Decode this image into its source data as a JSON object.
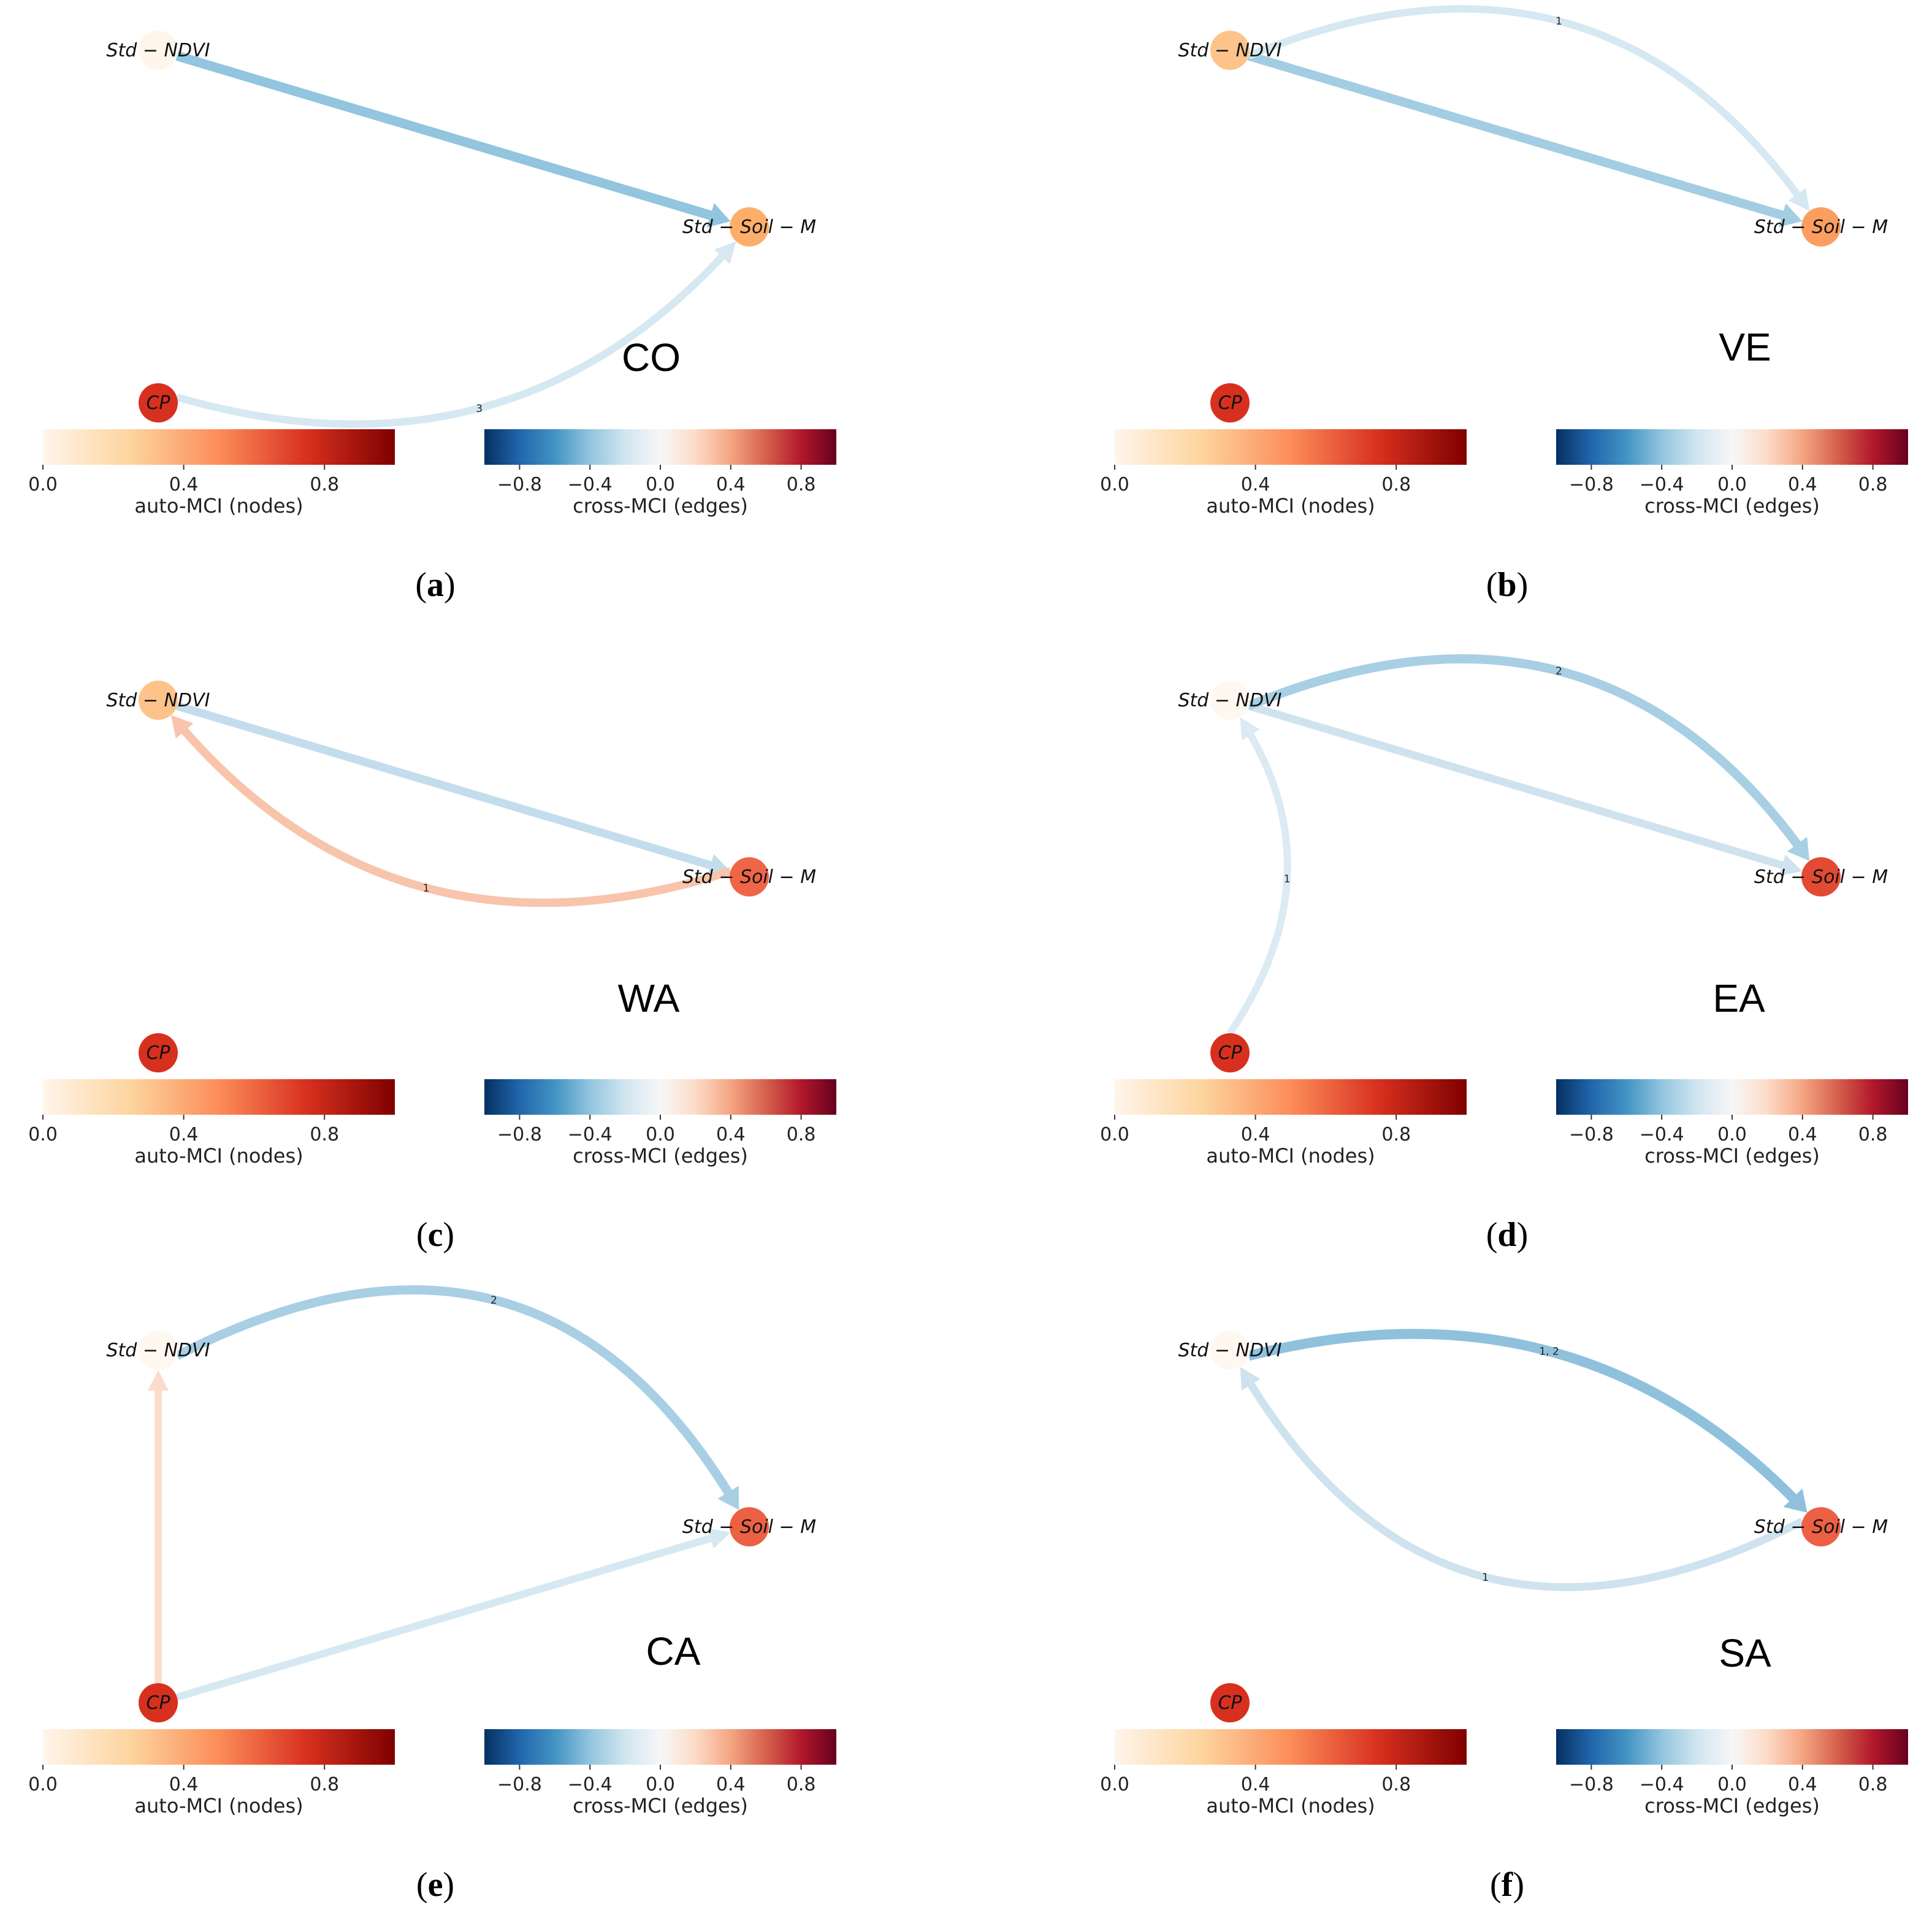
{
  "legend": {
    "node_title": "auto-MCI (nodes)",
    "edge_title": "cross-MCI (edges)",
    "node_ticks": [
      "0.0",
      "0.4",
      "0.8"
    ],
    "node_tick_values": [
      0.0,
      0.4,
      0.8
    ],
    "node_range": [
      0.0,
      1.0
    ],
    "edge_ticks": [
      "−0.8",
      "−0.4",
      "0.0",
      "0.4",
      "0.8"
    ],
    "edge_tick_values": [
      -0.8,
      -0.4,
      0.0,
      0.4,
      0.8
    ],
    "edge_range": [
      -1.0,
      1.0
    ],
    "node_colors": [
      "#fff5eb",
      "#fdd49e",
      "#fc8d59",
      "#d7301f",
      "#7f0000"
    ],
    "edge_colors": [
      "#053061",
      "#2166ac",
      "#4393c3",
      "#92c5de",
      "#d1e5f0",
      "#f7f7f7",
      "#fddbc7",
      "#f4a582",
      "#d6604d",
      "#b2182b",
      "#67001f"
    ]
  },
  "node_labels": {
    "ndvi": "Std − NDVI",
    "soil": "Std − Soil − M",
    "cp": "CP"
  },
  "panels": [
    {
      "caption": "a",
      "region": "CO",
      "nodes": {
        "ndvi": {
          "mci": 0.04,
          "color": "#fff5eb"
        },
        "soil": {
          "mci": 0.35,
          "color": "#fdae6b"
        },
        "cp": {
          "mci": 0.85,
          "color": "#d7301f"
        }
      },
      "edges": [
        {
          "from": "ndvi",
          "to": "soil",
          "curve": "straight",
          "mci": -0.4,
          "color": "#92c5de",
          "lag": ""
        },
        {
          "from": "cp",
          "to": "soil",
          "curve": "arc",
          "mci": -0.15,
          "color": "#d6e8f2",
          "lag": "3"
        }
      ]
    },
    {
      "caption": "b",
      "region": "VE",
      "nodes": {
        "ndvi": {
          "mci": 0.28,
          "color": "#fdc38a"
        },
        "soil": {
          "mci": 0.4,
          "color": "#fc9e60"
        },
        "cp": {
          "mci": 0.85,
          "color": "#d7301f"
        }
      },
      "edges": [
        {
          "from": "ndvi",
          "to": "soil",
          "curve": "straight",
          "mci": -0.35,
          "color": "#a3cde3",
          "lag": ""
        },
        {
          "from": "ndvi",
          "to": "soil",
          "curve": "arc",
          "mci": -0.15,
          "color": "#d6e8f2",
          "lag": "1"
        }
      ]
    },
    {
      "caption": "c",
      "region": "WA",
      "nodes": {
        "ndvi": {
          "mci": 0.28,
          "color": "#fdc38a"
        },
        "soil": {
          "mci": 0.6,
          "color": "#ef6548"
        },
        "cp": {
          "mci": 0.85,
          "color": "#d7301f"
        }
      },
      "edges": [
        {
          "from": "ndvi",
          "to": "soil",
          "curve": "straight",
          "mci": -0.25,
          "color": "#c3ddec",
          "lag": ""
        },
        {
          "from": "soil",
          "to": "ndvi",
          "curve": "arc",
          "mci": 0.25,
          "color": "#f8c4ab",
          "lag": "1"
        }
      ]
    },
    {
      "caption": "d",
      "region": "EA",
      "nodes": {
        "ndvi": {
          "mci": 0.02,
          "color": "#fff8f0"
        },
        "soil": {
          "mci": 0.75,
          "color": "#e34a33"
        },
        "cp": {
          "mci": 0.85,
          "color": "#d7301f"
        }
      },
      "edges": [
        {
          "from": "ndvi",
          "to": "soil",
          "curve": "straight",
          "mci": -0.2,
          "color": "#cfe3ef",
          "lag": ""
        },
        {
          "from": "ndvi",
          "to": "soil",
          "curve": "arc",
          "mci": -0.35,
          "color": "#a8cfe4",
          "lag": "2"
        },
        {
          "from": "cp",
          "to": "ndvi",
          "curve": "arc",
          "mci": -0.12,
          "color": "#dbeaf3",
          "lag": "1"
        }
      ]
    },
    {
      "caption": "e",
      "region": "CA",
      "nodes": {
        "ndvi": {
          "mci": 0.02,
          "color": "#fff8f0"
        },
        "soil": {
          "mci": 0.62,
          "color": "#ec6044"
        },
        "cp": {
          "mci": 0.85,
          "color": "#d7301f"
        }
      },
      "edges": [
        {
          "from": "ndvi",
          "to": "soil",
          "curve": "arc",
          "mci": -0.35,
          "color": "#a8cfe4",
          "lag": "2"
        },
        {
          "from": "cp",
          "to": "soil",
          "curve": "straight",
          "mci": -0.15,
          "color": "#d6e8f2",
          "lag": ""
        },
        {
          "from": "cp",
          "to": "ndvi",
          "curve": "straight",
          "mci": 0.12,
          "color": "#fbdccc",
          "lag": ""
        }
      ]
    },
    {
      "caption": "f",
      "region": "SA",
      "nodes": {
        "ndvi": {
          "mci": 0.02,
          "color": "#fff8f0"
        },
        "soil": {
          "mci": 0.62,
          "color": "#ec6044"
        },
        "cp": {
          "mci": 0.85,
          "color": "#d7301f"
        }
      },
      "edges": [
        {
          "from": "ndvi",
          "to": "soil",
          "curve": "arc",
          "mci": -0.45,
          "color": "#8fc1dd",
          "lag": "1, 2"
        },
        {
          "from": "soil",
          "to": "ndvi",
          "curve": "arc",
          "mci": -0.2,
          "color": "#cfe3ef",
          "lag": "1"
        }
      ]
    }
  ]
}
